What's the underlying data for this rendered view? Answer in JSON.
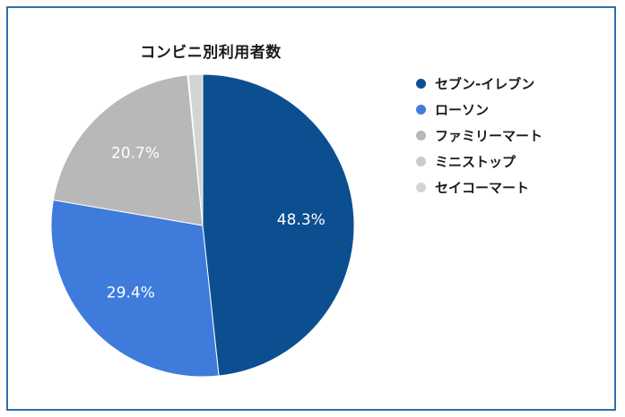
{
  "chart_data": {
    "type": "pie",
    "title": "コンビニ別利用者数",
    "categories": [
      "セブン-イレブン",
      "ローソン",
      "ファミリーマート",
      "ミニストップ",
      "セイコーマート"
    ],
    "values": [
      48.3,
      29.4,
      20.7,
      0.1,
      1.5
    ],
    "value_labels": [
      "48.3%",
      "29.4%",
      "20.7%",
      "",
      ""
    ],
    "colors": [
      "#0c4f91",
      "#3f7bdb",
      "#b8b8b8",
      "#cbcbcb",
      "#d4d4d4"
    ],
    "legend_position": "right",
    "start": "top",
    "direction": "clockwise"
  }
}
